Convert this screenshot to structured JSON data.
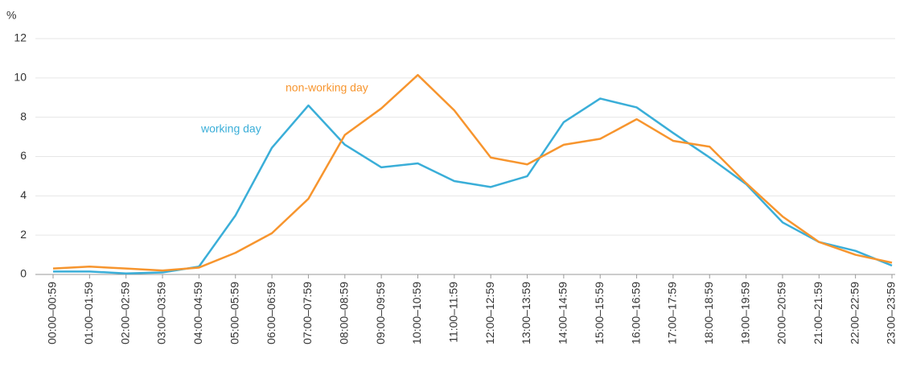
{
  "chart_data": {
    "type": "line",
    "y_label": "%",
    "categories": [
      "00:00–00:59",
      "01:00–01:59",
      "02:00–02:59",
      "03:00–03:59",
      "04:00–04:59",
      "05:00–05:59",
      "06:00–06:59",
      "07:00–07:59",
      "08:00–08:59",
      "09:00–09:59",
      "10:00–10:59",
      "11:00–11:59",
      "12:00–12:59",
      "13:00–13:59",
      "14:00–14:59",
      "15:00–15:59",
      "16:00–16:59",
      "17:00–17:59",
      "18:00–18:59",
      "19:00–19:59",
      "20:00–20:59",
      "21:00–21:59",
      "22:00–22:59",
      "23:00–23:59"
    ],
    "series": [
      {
        "name": "working day",
        "color": "#3aaed8",
        "values": [
          0.15,
          0.15,
          0.05,
          0.1,
          0.4,
          3.0,
          6.45,
          8.6,
          6.6,
          5.45,
          5.65,
          4.75,
          4.45,
          5.0,
          7.75,
          8.95,
          8.5,
          7.2,
          5.95,
          4.6,
          2.65,
          1.65,
          1.2,
          0.45
        ]
      },
      {
        "name": "non-working day",
        "color": "#f7952e",
        "values": [
          0.3,
          0.4,
          0.3,
          0.2,
          0.35,
          1.1,
          2.1,
          3.85,
          7.1,
          8.45,
          10.15,
          8.35,
          5.95,
          5.6,
          6.6,
          6.9,
          7.9,
          6.8,
          6.5,
          4.65,
          2.95,
          1.65,
          1.0,
          0.6
        ]
      }
    ],
    "ylim": [
      0,
      12
    ],
    "yticks": [
      0,
      2,
      4,
      6,
      8,
      10,
      12
    ],
    "grid": true
  }
}
